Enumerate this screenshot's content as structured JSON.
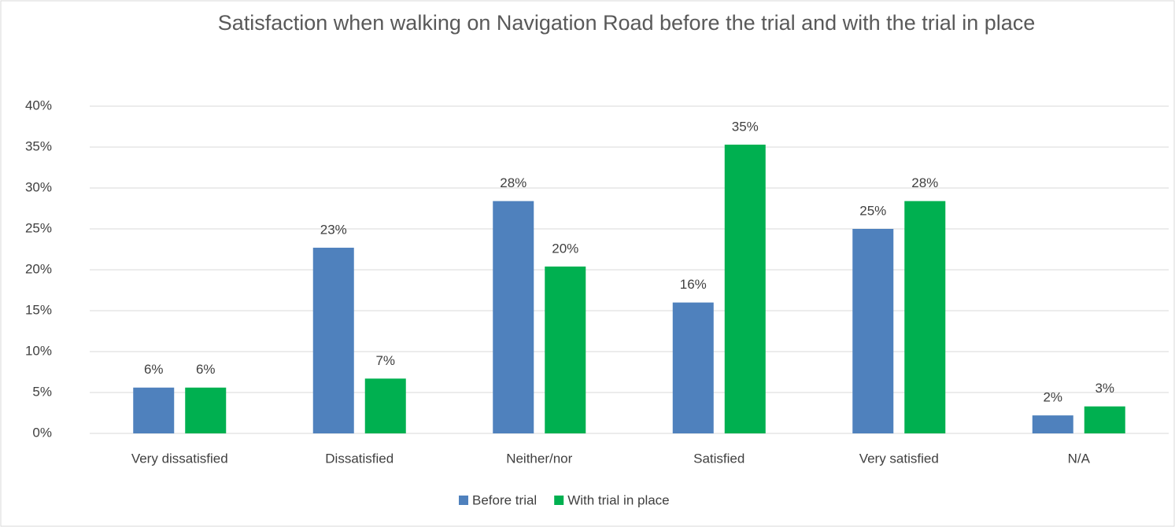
{
  "chart_data": {
    "type": "bar",
    "title": "Satisfaction when walking on Navigation Road before the trial and with the trial in place",
    "categories": [
      "Very dissatisfied",
      "Dissatisfied",
      "Neither/nor",
      "Satisfied",
      "Very satisfied",
      "N/A"
    ],
    "series": [
      {
        "name": "Before trial",
        "color": "#4f81bd",
        "values": [
          5.6,
          22.7,
          28.4,
          16.0,
          25.0,
          2.2
        ],
        "value_labels": [
          "6%",
          "23%",
          "28%",
          "16%",
          "25%",
          "2%"
        ]
      },
      {
        "name": "With trial in place",
        "color": "#00b050",
        "values": [
          5.6,
          6.7,
          20.4,
          35.3,
          28.4,
          3.3
        ],
        "value_labels": [
          "6%",
          "7%",
          "20%",
          "35%",
          "28%",
          "3%"
        ]
      }
    ],
    "ylim": [
      0,
      40
    ],
    "yticks": [
      {
        "value": 0,
        "label": "0%"
      },
      {
        "value": 5,
        "label": "5%"
      },
      {
        "value": 10,
        "label": "10%"
      },
      {
        "value": 15,
        "label": "15%"
      },
      {
        "value": 20,
        "label": "20%"
      },
      {
        "value": 25,
        "label": "25%"
      },
      {
        "value": 30,
        "label": "30%"
      },
      {
        "value": 35,
        "label": "35%"
      },
      {
        "value": 40,
        "label": "40%"
      }
    ],
    "grid": true,
    "legend": "bottom"
  }
}
